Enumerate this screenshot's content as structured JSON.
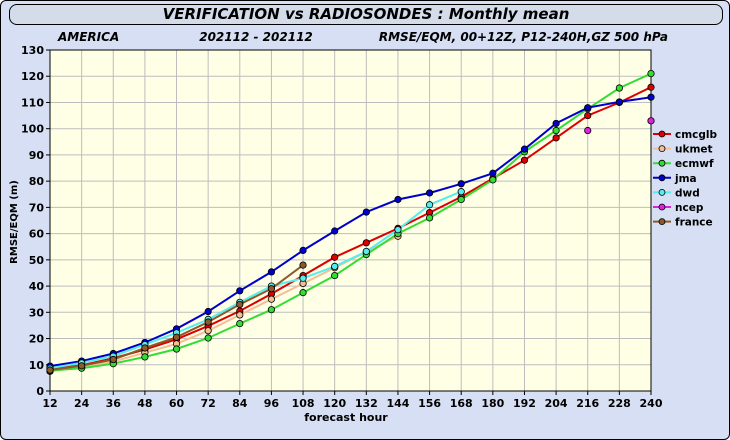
{
  "header": {
    "title": "VERIFICATION vs RADIOSONDES : Monthly mean",
    "region": "AMERICA",
    "period": "202112 - 202112",
    "params": "RMSE/EQM, 00+12Z, P12-240H,GZ 500 hPa"
  },
  "chart_data": {
    "type": "line",
    "xlabel": "forecast hour",
    "ylabel": "RMSE/EQM (m)",
    "xlim": [
      12,
      240
    ],
    "ylim": [
      0,
      130
    ],
    "x_ticks": [
      12,
      24,
      36,
      48,
      60,
      72,
      84,
      96,
      108,
      120,
      132,
      144,
      156,
      168,
      180,
      192,
      204,
      216,
      228,
      240
    ],
    "y_ticks": [
      0,
      10,
      20,
      30,
      40,
      50,
      60,
      70,
      80,
      90,
      100,
      110,
      120,
      130
    ],
    "legend_position": "right",
    "series": [
      {
        "name": "cmcglb",
        "color": "#dd0000",
        "x": [
          12,
          24,
          36,
          48,
          60,
          72,
          84,
          96,
          108,
          120,
          132,
          144,
          156,
          168,
          180,
          192,
          204,
          216,
          228,
          240
        ],
        "y": [
          8.3,
          9.8,
          12.5,
          15.8,
          19.7,
          24.8,
          30.5,
          37,
          44,
          51,
          56.5,
          62,
          68,
          74,
          81,
          88,
          96.5,
          105,
          110,
          115.8
        ]
      },
      {
        "name": "ukmet",
        "color": "#f4bf95",
        "x": [
          12,
          24,
          36,
          48,
          60,
          72,
          84,
          96,
          108,
          120,
          132,
          144
        ],
        "y": [
          7.5,
          9,
          11.2,
          14.6,
          18,
          23,
          29,
          35,
          41,
          47,
          53,
          59
        ]
      },
      {
        "name": "ecmwf",
        "color": "#33dd33",
        "x": [
          12,
          24,
          36,
          48,
          60,
          72,
          84,
          96,
          108,
          120,
          132,
          144,
          156,
          168,
          180,
          192,
          204,
          216,
          228,
          240
        ],
        "y": [
          7.8,
          8.7,
          10.4,
          13,
          16,
          20.2,
          25.7,
          31,
          37.5,
          44,
          52,
          60,
          66,
          73,
          80.5,
          91.2,
          99.3,
          107.6,
          115.5,
          121
        ]
      },
      {
        "name": "jma",
        "color": "#0000cc",
        "x": [
          12,
          24,
          36,
          48,
          60,
          72,
          84,
          96,
          108,
          120,
          132,
          144,
          156,
          168,
          180,
          192,
          204,
          216,
          228,
          240
        ],
        "y": [
          9.5,
          11.4,
          14.3,
          18.5,
          23.7,
          30.3,
          38.2,
          45.4,
          53.6,
          61,
          68.2,
          73,
          75.5,
          79,
          83,
          92.2,
          102,
          108,
          110.2,
          112
        ]
      },
      {
        "name": "dwd",
        "color": "#55eeee",
        "x": [
          12,
          24,
          36,
          48,
          60,
          72,
          84,
          96,
          108,
          120,
          132,
          144,
          156,
          168
        ],
        "y": [
          8.7,
          10.7,
          13.3,
          17.7,
          22.2,
          27.3,
          33.8,
          40,
          43,
          47.5,
          53.2,
          61.5,
          71,
          76
        ]
      },
      {
        "name": "ncep",
        "color": "#dd22dd",
        "x": [
          216,
          240
        ],
        "y": [
          99.3,
          103
        ]
      },
      {
        "name": "france",
        "color": "#8b5a2b",
        "x": [
          12,
          24,
          36,
          48,
          60,
          72,
          84,
          96,
          108
        ],
        "y": [
          8,
          9.6,
          12,
          16.4,
          20.5,
          26.3,
          33,
          39,
          48
        ]
      }
    ]
  }
}
